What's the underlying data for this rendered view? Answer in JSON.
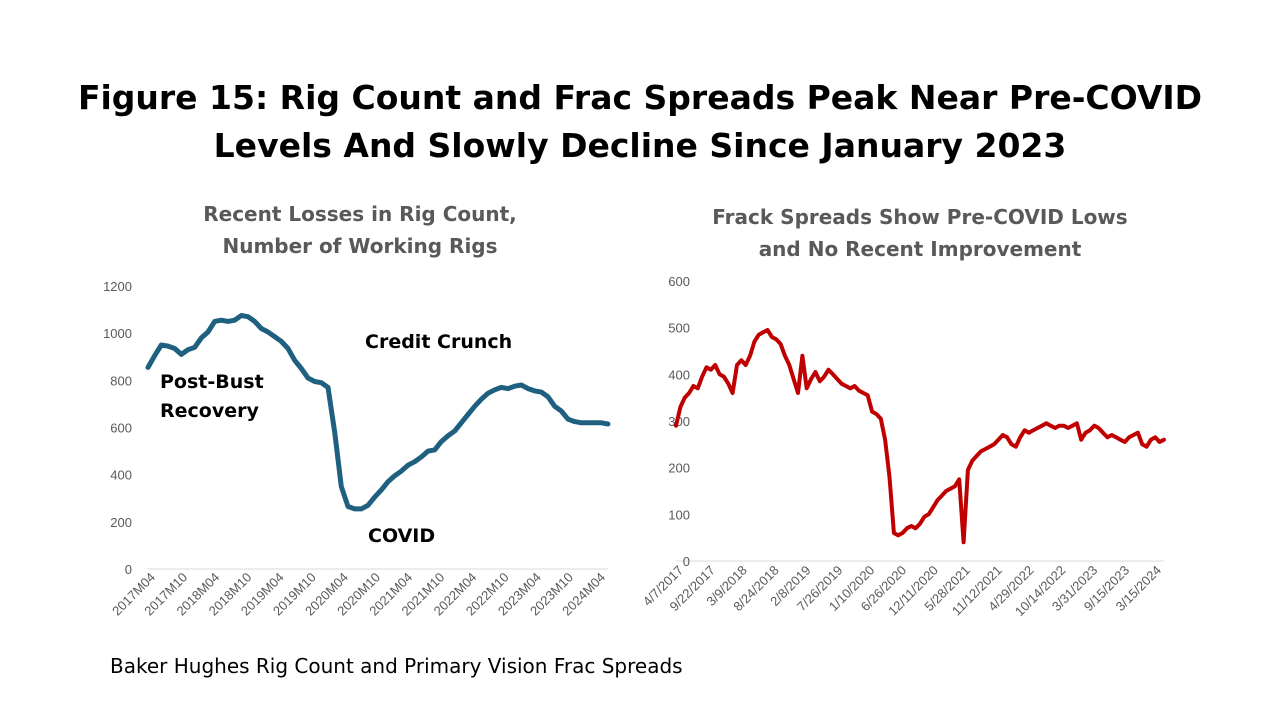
{
  "figure_title": "Figure 15: Rig Count and Frac Spreads Peak Near Pre-COVID\nLevels And Slowly Decline Since January 2023",
  "source": "Baker Hughes Rig Count and Primary Vision Frac Spreads",
  "chart_data": [
    {
      "type": "line",
      "title": "Recent Losses in Rig Count,\nNumber of Working Rigs",
      "color": "#1f5f7f",
      "ylim": [
        0,
        1200
      ],
      "yticks": [
        0,
        200,
        400,
        600,
        800,
        1000,
        1200
      ],
      "xtick_labels": [
        "2017M04",
        "2017M10",
        "2018M04",
        "2018M10",
        "2019M04",
        "2019M10",
        "2020M04",
        "2020M10",
        "2021M04",
        "2021M10",
        "2022M04",
        "2022M10",
        "2023M04",
        "2023M10",
        "2024M04"
      ],
      "annotations": [
        "Post-Bust\nRecovery",
        "Credit Crunch",
        "COVID"
      ],
      "series": [
        {
          "values": [
            855,
            905,
            950,
            945,
            935,
            910,
            930,
            940,
            980,
            1005,
            1050,
            1055,
            1050,
            1055,
            1075,
            1070,
            1050,
            1020,
            1005,
            985,
            965,
            935,
            885,
            850,
            810,
            795,
            790,
            770,
            580,
            350,
            265,
            255,
            255,
            270,
            305,
            335,
            370,
            395,
            415,
            440,
            455,
            475,
            500,
            505,
            540,
            565,
            585,
            620,
            655,
            690,
            720,
            745,
            760,
            770,
            765,
            775,
            780,
            765,
            755,
            750,
            730,
            690,
            670,
            635,
            625,
            620,
            620,
            620,
            620,
            615
          ]
        }
      ]
    },
    {
      "type": "line",
      "title": "Frack Spreads Show Pre-COVID Lows\nand No Recent Improvement",
      "color": "#c00000",
      "ylim": [
        0,
        600
      ],
      "yticks": [
        0,
        100,
        200,
        300,
        400,
        500,
        600
      ],
      "xtick_labels": [
        "4/7/2017",
        "9/22/2017",
        "3/9/2018",
        "8/24/2018",
        "2/8/2019",
        "7/26/2019",
        "1/10/2020",
        "6/26/2020",
        "12/11/2020",
        "5/28/2021",
        "11/12/2021",
        "4/29/2022",
        "10/14/2022",
        "3/31/2023",
        "9/15/2023",
        "3/15/2024"
      ],
      "series": [
        {
          "values": [
            290,
            330,
            350,
            360,
            375,
            370,
            395,
            415,
            410,
            420,
            400,
            395,
            380,
            360,
            420,
            430,
            420,
            440,
            470,
            485,
            490,
            495,
            480,
            475,
            465,
            440,
            420,
            390,
            360,
            440,
            370,
            390,
            405,
            385,
            395,
            410,
            400,
            390,
            380,
            375,
            370,
            375,
            365,
            360,
            355,
            320,
            315,
            305,
            260,
            180,
            60,
            55,
            60,
            70,
            75,
            70,
            80,
            95,
            100,
            115,
            130,
            140,
            150,
            155,
            160,
            175,
            40,
            195,
            215,
            225,
            235,
            240,
            245,
            250,
            260,
            270,
            265,
            250,
            245,
            265,
            280,
            275,
            280,
            285,
            290,
            295,
            290,
            285,
            290,
            290,
            285,
            290,
            295,
            260,
            275,
            280,
            290,
            285,
            275,
            265,
            270,
            265,
            260,
            255,
            265,
            270,
            275,
            250,
            245,
            260,
            265,
            255,
            260
          ]
        }
      ]
    }
  ]
}
